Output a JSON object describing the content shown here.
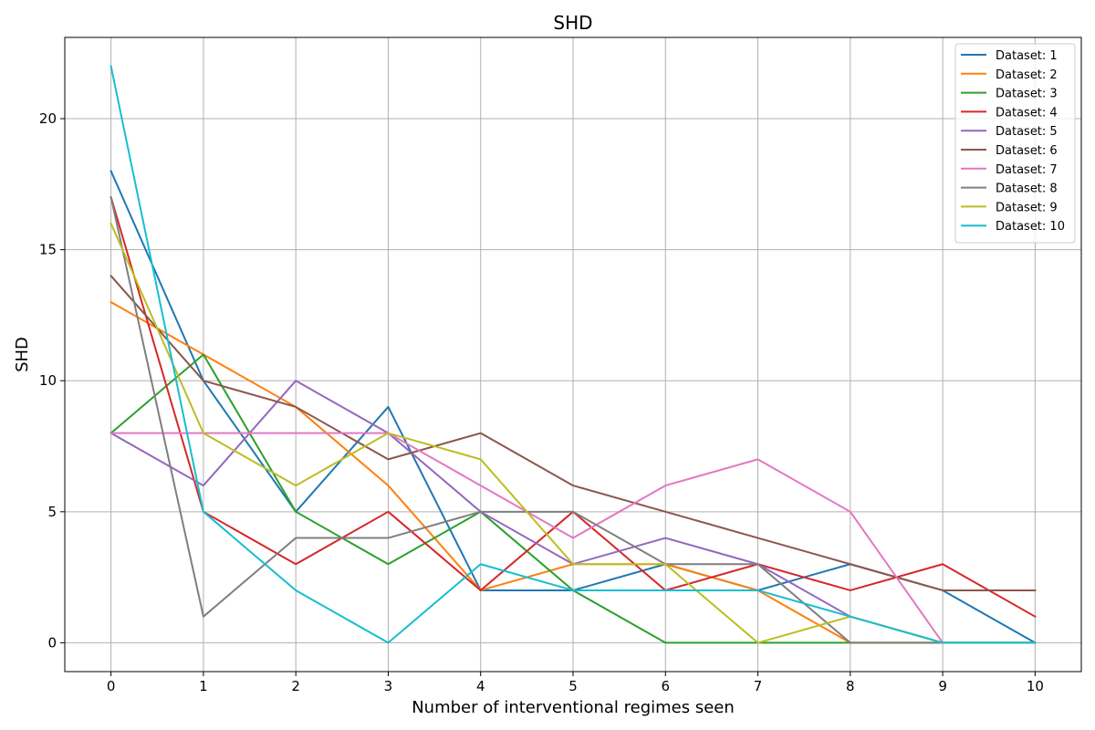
{
  "chart_data": {
    "type": "line",
    "title": "SHD",
    "xlabel": "Number of interventional regimes seen",
    "ylabel": "SHD",
    "x": [
      0,
      1,
      2,
      3,
      4,
      5,
      6,
      7,
      8,
      9,
      10
    ],
    "xlim": [
      -0.5,
      10.5
    ],
    "ylim": [
      -1.1,
      23.1
    ],
    "xticks": [
      "0",
      "1",
      "2",
      "3",
      "4",
      "5",
      "6",
      "7",
      "8",
      "9",
      "10"
    ],
    "yticks": [
      "0",
      "5",
      "10",
      "15",
      "20"
    ],
    "ytick_values": [
      0,
      5,
      10,
      15,
      20
    ],
    "grid": true,
    "legend_position": "top-right",
    "series": [
      {
        "name": "Dataset: 1",
        "color": "#1f77b4",
        "values": [
          18,
          10,
          5,
          9,
          2,
          2,
          3,
          2,
          3,
          2,
          0
        ]
      },
      {
        "name": "Dataset: 2",
        "color": "#ff7f0e",
        "values": [
          13,
          11,
          9,
          6,
          2,
          3,
          3,
          2,
          0,
          0,
          0
        ]
      },
      {
        "name": "Dataset: 3",
        "color": "#2ca02c",
        "values": [
          8,
          11,
          5,
          3,
          5,
          2,
          0,
          0,
          0,
          0,
          0
        ]
      },
      {
        "name": "Dataset: 4",
        "color": "#d62728",
        "values": [
          17,
          5,
          3,
          5,
          2,
          5,
          2,
          3,
          2,
          3,
          1
        ]
      },
      {
        "name": "Dataset: 5",
        "color": "#9467bd",
        "values": [
          8,
          6,
          10,
          8,
          5,
          3,
          4,
          3,
          1,
          0,
          0
        ]
      },
      {
        "name": "Dataset: 6",
        "color": "#8c564b",
        "values": [
          14,
          10,
          9,
          7,
          8,
          6,
          5,
          4,
          3,
          2,
          2
        ]
      },
      {
        "name": "Dataset: 7",
        "color": "#e377c2",
        "values": [
          8,
          8,
          8,
          8,
          6,
          4,
          6,
          7,
          5,
          0,
          0
        ]
      },
      {
        "name": "Dataset: 8",
        "color": "#7f7f7f",
        "values": [
          17,
          1,
          4,
          4,
          5,
          5,
          3,
          3,
          0,
          0,
          0
        ]
      },
      {
        "name": "Dataset: 9",
        "color": "#bcbd22",
        "values": [
          16,
          8,
          6,
          8,
          7,
          3,
          3,
          0,
          1,
          0,
          0
        ]
      },
      {
        "name": "Dataset: 10",
        "color": "#17becf",
        "values": [
          22,
          5,
          2,
          0,
          3,
          2,
          2,
          2,
          1,
          0,
          0
        ]
      }
    ]
  }
}
